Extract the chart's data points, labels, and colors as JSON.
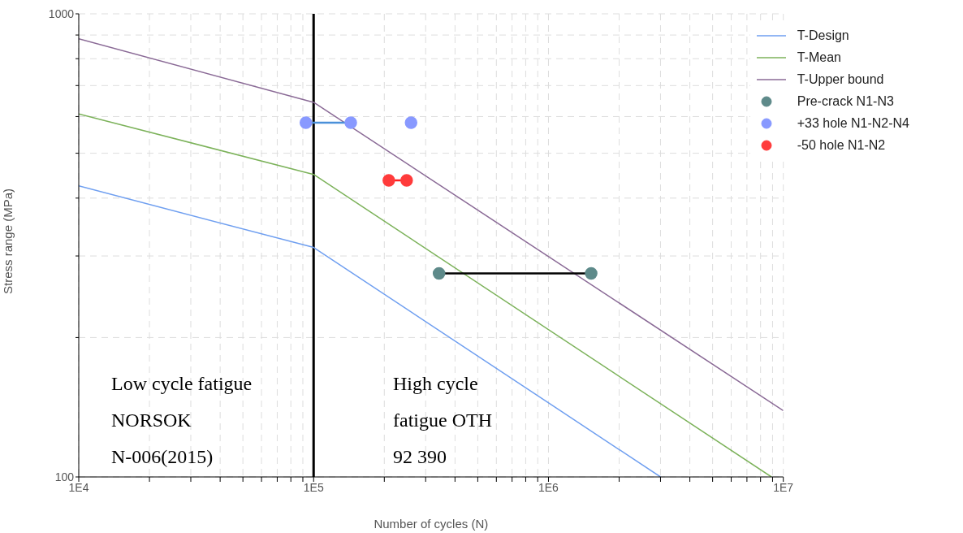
{
  "chart_data": {
    "type": "line",
    "xlabel": "Number of cycles (N)",
    "ylabel": "Stress range (MPa)",
    "log": "xy",
    "grid": true,
    "legend": "top right",
    "xlim": [
      10000,
      10000000
    ],
    "xticks": [
      {
        "value": 10000,
        "label": "1E4"
      },
      {
        "value": 20000,
        "label": null
      },
      {
        "value": 30000,
        "label": null
      },
      {
        "value": 40000,
        "label": null
      },
      {
        "value": 50000,
        "label": null
      },
      {
        "value": 60000,
        "label": null
      },
      {
        "value": 70000,
        "label": null
      },
      {
        "value": 80000,
        "label": null
      },
      {
        "value": 90000,
        "label": null
      },
      {
        "value": 100000,
        "label": "1E5"
      },
      {
        "value": 200000,
        "label": null
      },
      {
        "value": 300000,
        "label": null
      },
      {
        "value": 400000,
        "label": null
      },
      {
        "value": 500000,
        "label": null
      },
      {
        "value": 600000,
        "label": null
      },
      {
        "value": 700000,
        "label": null
      },
      {
        "value": 800000,
        "label": null
      },
      {
        "value": 900000,
        "label": null
      },
      {
        "value": 1000000,
        "label": "1E6"
      },
      {
        "value": 2000000,
        "label": null
      },
      {
        "value": 3000000,
        "label": null
      },
      {
        "value": 4000000,
        "label": null
      },
      {
        "value": 5000000,
        "label": null
      },
      {
        "value": 6000000,
        "label": null
      },
      {
        "value": 7000000,
        "label": null
      },
      {
        "value": 8000000,
        "label": null
      },
      {
        "value": 9000000,
        "label": null
      },
      {
        "value": 10000000,
        "label": "1E7"
      }
    ],
    "ylim": [
      100,
      1000
    ],
    "yticks": [
      100,
      {
        "value": 200,
        "label": null
      },
      {
        "value": 300,
        "label": null
      },
      {
        "value": 400,
        "label": null
      },
      {
        "value": 500,
        "label": null
      },
      {
        "value": 600,
        "label": null
      },
      {
        "value": 700,
        "label": null
      },
      {
        "value": 800,
        "label": null
      },
      {
        "value": 900,
        "label": null
      },
      1000
    ],
    "ref_lines": [
      {
        "axis": "x",
        "value": 100000,
        "color": "#000000"
      }
    ],
    "annotations": [
      "Low cycle fatigue\nNORSOK\nN-006(2015)",
      "High cycle\nfatigue OTH\n92 390"
    ],
    "series": [
      {
        "name": "T-Design",
        "color": "#6f9ff0",
        "x": [
          10000,
          100000,
          3000000
        ],
        "values": [
          425,
          313,
          100
        ]
      },
      {
        "name": "T-Mean",
        "color": "#7cb25a",
        "x": [
          10000,
          100000,
          8900000
        ],
        "values": [
          608,
          450,
          100
        ]
      },
      {
        "name": "T-Upper bound",
        "color": "#8a6a96",
        "x": [
          10000,
          100000,
          10000000
        ],
        "values": [
          883,
          644,
          139
        ]
      },
      {
        "color": "#000000",
        "x": [
          342000,
          1520000
        ],
        "values": [
          275,
          275
        ]
      },
      {
        "color": "#4a90d9",
        "x": [
          92700,
          144000
        ],
        "values": [
          582,
          582
        ]
      },
      {
        "color": "#ff2020",
        "x": [
          209000,
          249000
        ],
        "values": [
          437,
          437
        ]
      },
      {
        "name": "Pre-crack N1-N3",
        "type": "scatter",
        "marker": "circle",
        "color": "#5e8a8a",
        "x": [
          342000,
          1520000
        ],
        "values": [
          275,
          275
        ]
      },
      {
        "name": "+33 hole N1-N2-N4",
        "type": "scatter",
        "marker": "circle",
        "color": "#8899ff",
        "x": [
          92700,
          144000,
          260000
        ],
        "values": [
          582,
          582,
          582
        ]
      },
      {
        "name": "-50 hole N1-N2",
        "type": "scatter",
        "marker": "circle",
        "color": "#ff3b3b",
        "x": [
          209000,
          249000
        ],
        "values": [
          437,
          437
        ]
      }
    ]
  }
}
